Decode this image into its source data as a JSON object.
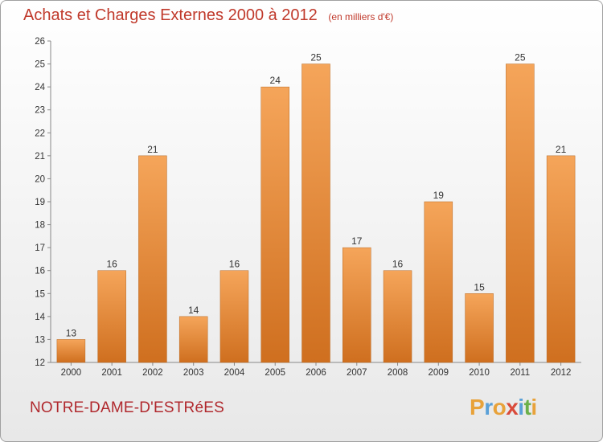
{
  "header": {
    "title": "Achats et Charges Externes 2000 à 2012",
    "unit": "(en milliers d'€)"
  },
  "footer": {
    "commune": "NOTRE-DAME-D'ESTRéES",
    "logo_letters": [
      "P",
      "r",
      "o",
      "x",
      "i",
      "t",
      "i"
    ],
    "logo_colors": [
      "#e8a23a",
      "#5aa0d8",
      "#e8a23a",
      "#d94a3a",
      "#5aa0d8",
      "#6cb04a",
      "#e8a23a"
    ]
  },
  "colors": {
    "bar_top": "#f5a55a",
    "bar_bottom": "#cf6f1f",
    "title": "#c0392b"
  },
  "chart_data": {
    "type": "bar",
    "title": "Achats et Charges Externes 2000 à 2012",
    "subtitle": "(en milliers d'€)",
    "xlabel": "",
    "ylabel": "",
    "categories": [
      "2000",
      "2001",
      "2002",
      "2003",
      "2004",
      "2005",
      "2006",
      "2007",
      "2008",
      "2009",
      "2010",
      "2011",
      "2012"
    ],
    "values": [
      13,
      16,
      21,
      14,
      16,
      24,
      25,
      17,
      16,
      19,
      15,
      25,
      21
    ],
    "ylim": [
      12,
      26
    ],
    "yticks": [
      12,
      13,
      14,
      15,
      16,
      17,
      18,
      19,
      20,
      21,
      22,
      23,
      24,
      25,
      26
    ],
    "grid": false,
    "legend": "none"
  }
}
